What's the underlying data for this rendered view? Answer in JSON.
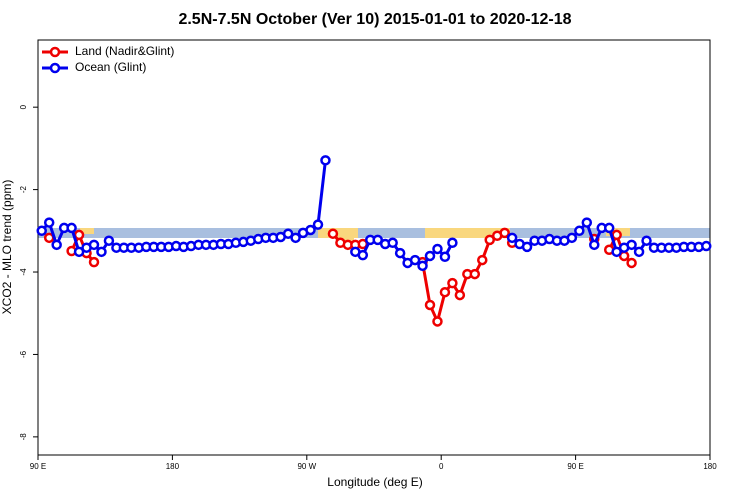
{
  "chart_data": {
    "type": "line",
    "title": "2.5N-7.5N October (Ver 10)   2015-01-01 to 2020-12-18",
    "x_label": "Longitude (deg E)",
    "y_label": "XCO2 - MLO trend (ppm)",
    "xlim": [
      90,
      540
    ],
    "ylim": [
      -8.44,
      1.63
    ],
    "xticks": [
      {
        "value": 90,
        "label": "90 E"
      },
      {
        "value": 180,
        "label": "180"
      },
      {
        "value": 270,
        "label": "90 W"
      },
      {
        "value": 360,
        "label": "0"
      },
      {
        "value": 450,
        "label": "90 E"
      },
      {
        "value": 540,
        "label": "180"
      }
    ],
    "yticks": [
      0,
      -2,
      -4,
      -6,
      -8
    ],
    "legend": "top-left",
    "series": [
      {
        "name": "Land (Nadir&Glint)",
        "color": "#ee0000",
        "x": [
          97.5,
          107.5,
          112.5,
          117.5,
          122.5,
          127.5,
          132.5,
          287.5,
          292.5,
          297.5,
          302.5,
          307.5,
          312.5,
          347.5,
          352.5,
          357.5,
          362.5,
          367.5,
          372.5,
          377.5,
          382.5,
          387.5,
          392.5,
          397.5,
          402.5,
          407.5,
          412.5,
          462.5,
          467.5,
          472.5,
          477.5,
          482.5,
          487.5
        ],
        "values": [
          -3.17,
          null,
          -3.49,
          -3.1,
          -3.54,
          -3.76,
          null,
          -3.07,
          -3.29,
          -3.34,
          -3.34,
          -3.32,
          null,
          -3.76,
          -4.8,
          -5.2,
          -4.49,
          -4.27,
          -4.56,
          -4.05,
          -4.05,
          -3.71,
          -3.22,
          -3.12,
          -3.05,
          -3.29,
          null,
          -3.2,
          null,
          -3.46,
          -3.1,
          -3.61,
          -3.78
        ]
      },
      {
        "name": "Ocean (Glint)",
        "color": "#0000ee",
        "x": [
          92.5,
          97.5,
          102.5,
          107.5,
          112.5,
          117.5,
          122.5,
          127.5,
          132.5,
          137.5,
          142.5,
          147.5,
          152.5,
          157.5,
          162.5,
          167.5,
          172.5,
          177.5,
          182.5,
          187.5,
          192.5,
          197.5,
          202.5,
          207.5,
          212.5,
          217.5,
          222.5,
          227.5,
          232.5,
          237.5,
          242.5,
          247.5,
          252.5,
          257.5,
          262.5,
          267.5,
          272.5,
          277.5,
          282.5,
          287.5,
          302.5,
          307.5,
          312.5,
          317.5,
          322.5,
          327.5,
          332.5,
          337.5,
          342.5,
          347.5,
          352.5,
          357.5,
          362.5,
          367.5,
          372.5,
          407.5,
          412.5,
          417.5,
          422.5,
          427.5,
          432.5,
          437.5,
          442.5,
          447.5,
          452.5,
          457.5,
          462.5,
          467.5,
          472.5,
          477.5,
          482.5,
          487.5,
          492.5,
          497.5,
          502.5,
          507.5,
          512.5,
          517.5,
          522.5,
          527.5,
          532.5,
          537.5
        ],
        "values": [
          -3.0,
          -2.8,
          -3.34,
          -2.93,
          -2.93,
          -3.51,
          -3.41,
          -3.34,
          -3.51,
          -3.24,
          -3.41,
          -3.41,
          -3.41,
          -3.41,
          -3.39,
          -3.39,
          -3.39,
          -3.39,
          -3.37,
          -3.39,
          -3.37,
          -3.34,
          -3.34,
          -3.34,
          -3.32,
          -3.32,
          -3.29,
          -3.27,
          -3.24,
          -3.2,
          -3.17,
          -3.17,
          -3.15,
          -3.07,
          -3.17,
          -3.05,
          -2.98,
          -2.85,
          -1.29,
          null,
          -3.51,
          -3.59,
          -3.22,
          -3.22,
          -3.32,
          -3.29,
          -3.54,
          -3.78,
          -3.71,
          -3.85,
          -3.61,
          -3.44,
          -3.63,
          -3.29,
          null,
          -3.17,
          -3.32,
          -3.39,
          -3.24,
          -3.24,
          -3.2,
          -3.24,
          -3.24,
          -3.17,
          -3.0,
          -2.8,
          -3.34,
          -2.93,
          -2.93,
          -3.51,
          -3.41,
          -3.34,
          -3.51,
          -3.24,
          -3.41,
          -3.41,
          -3.41,
          -3.41,
          -3.39,
          -3.39,
          -3.39,
          -3.37
        ]
      }
    ]
  }
}
